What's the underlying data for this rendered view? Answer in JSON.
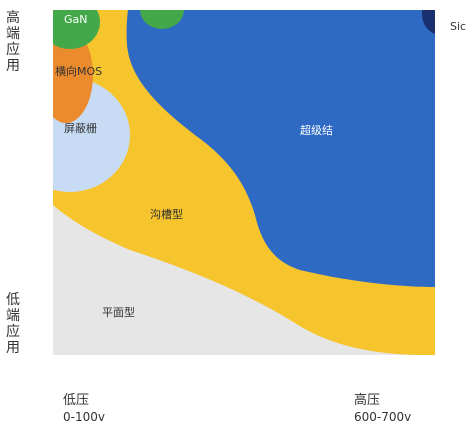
{
  "axes": {
    "top_left": [
      "高",
      "端",
      "应",
      "用"
    ],
    "bottom_left": [
      "低",
      "端",
      "应",
      "用"
    ],
    "low_pressure_title": "低压",
    "low_pressure_range": "0-100v",
    "high_pressure_title": "高压",
    "high_pressure_range": "600-700v"
  },
  "regions": {
    "gan": "GaN",
    "lateral_mos": "横向MOS",
    "shield_gate": "屏蔽栅",
    "super_junction": "超级结",
    "trench": "沟槽型",
    "planar": "平面型",
    "sic": "Sic"
  },
  "colors": {
    "planar": "#e6e6e6",
    "trench": "#f6c42c",
    "super_junction": "#2e6ac4",
    "shield_gate": "#c7dcf4",
    "lateral_mos": "#ec8a2e",
    "gan": "#43a84a",
    "sic": "#1a2f6e"
  }
}
